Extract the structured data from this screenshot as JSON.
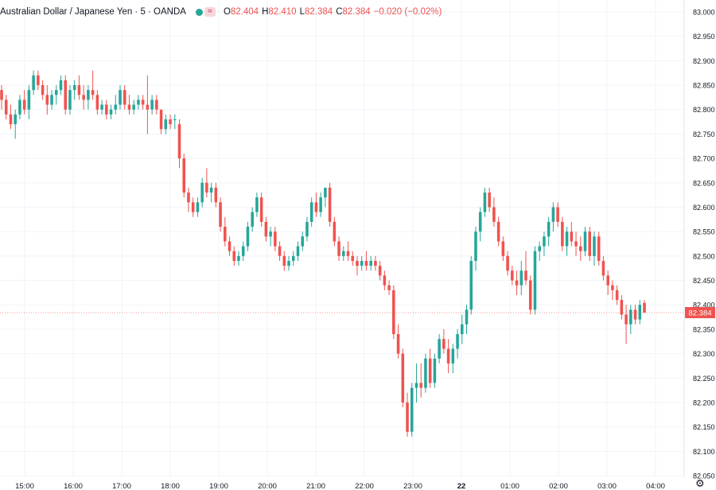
{
  "header": {
    "title": "Australian Dollar / Japanese Yen · 5 · OANDA",
    "open_label": "O",
    "open": "82.404",
    "high_label": "H",
    "high": "82.410",
    "low_label": "L",
    "low": "82.384",
    "close_label": "C",
    "close": "82.384",
    "change": "−0.020 (−0.02%)"
  },
  "colors": {
    "up": "#26a69a",
    "down": "#ef5350",
    "grid": "#f0f3fa",
    "price_line": "#ef5350"
  },
  "icons": {
    "settings": "gear-icon",
    "indicator": "wave-icon"
  },
  "chart_data": {
    "type": "candlestick",
    "ylim": [
      82.05,
      83.0
    ],
    "y_ticks": [
      "83.000",
      "82.950",
      "82.900",
      "82.850",
      "82.800",
      "82.750",
      "82.700",
      "82.650",
      "82.600",
      "82.550",
      "82.500",
      "82.450",
      "82.400",
      "82.350",
      "82.300",
      "82.250",
      "82.200",
      "82.150",
      "82.100",
      "82.050"
    ],
    "x_ticks": [
      "15:00",
      "16:00",
      "17:00",
      "18:00",
      "19:00",
      "20:00",
      "21:00",
      "22:00",
      "23:00",
      "22",
      "01:00",
      "02:00",
      "03:00",
      "04:00"
    ],
    "last_price": "82.384",
    "candles": [
      [
        82.84,
        82.85,
        82.8,
        82.82
      ],
      [
        82.82,
        82.83,
        82.78,
        82.79
      ],
      [
        82.79,
        82.81,
        82.76,
        82.77
      ],
      [
        82.77,
        82.8,
        82.74,
        82.79
      ],
      [
        82.79,
        82.83,
        82.78,
        82.82
      ],
      [
        82.82,
        82.84,
        82.79,
        82.8
      ],
      [
        82.8,
        82.85,
        82.78,
        82.84
      ],
      [
        82.84,
        82.88,
        82.83,
        82.87
      ],
      [
        82.87,
        82.88,
        82.84,
        82.85
      ],
      [
        82.85,
        82.86,
        82.82,
        82.83
      ],
      [
        82.83,
        82.85,
        82.79,
        82.81
      ],
      [
        82.81,
        82.84,
        82.8,
        82.83
      ],
      [
        82.83,
        82.85,
        82.81,
        82.84
      ],
      [
        82.84,
        82.87,
        82.83,
        82.86
      ],
      [
        82.86,
        82.87,
        82.79,
        82.8
      ],
      [
        82.8,
        82.85,
        82.79,
        82.84
      ],
      [
        82.84,
        82.86,
        82.82,
        82.85
      ],
      [
        82.85,
        82.87,
        82.82,
        82.83
      ],
      [
        82.83,
        82.85,
        82.8,
        82.82
      ],
      [
        82.82,
        82.85,
        82.8,
        82.84
      ],
      [
        82.84,
        82.88,
        82.82,
        82.83
      ],
      [
        82.83,
        82.84,
        82.79,
        82.8
      ],
      [
        82.8,
        82.82,
        82.79,
        82.81
      ],
      [
        82.81,
        82.82,
        82.78,
        82.79
      ],
      [
        82.79,
        82.81,
        82.78,
        82.8
      ],
      [
        82.8,
        82.83,
        82.79,
        82.81
      ],
      [
        82.81,
        82.85,
        82.8,
        82.84
      ],
      [
        82.84,
        82.85,
        82.8,
        82.81
      ],
      [
        82.81,
        82.83,
        82.79,
        82.8
      ],
      [
        82.8,
        82.82,
        82.79,
        82.81
      ],
      [
        82.81,
        82.83,
        82.8,
        82.82
      ],
      [
        82.82,
        82.83,
        82.8,
        82.81
      ],
      [
        82.81,
        82.87,
        82.75,
        82.8
      ],
      [
        82.8,
        82.83,
        82.79,
        82.82
      ],
      [
        82.82,
        82.83,
        82.79,
        82.8
      ],
      [
        82.8,
        82.8,
        82.75,
        82.76
      ],
      [
        82.76,
        82.79,
        82.75,
        82.78
      ],
      [
        82.78,
        82.79,
        82.76,
        82.77
      ],
      [
        82.78,
        82.79,
        82.76,
        82.78
      ],
      [
        82.77,
        82.78,
        82.68,
        82.7
      ],
      [
        82.7,
        82.71,
        82.62,
        82.63
      ],
      [
        82.63,
        82.64,
        82.59,
        82.61
      ],
      [
        82.61,
        82.62,
        82.58,
        82.59
      ],
      [
        82.59,
        82.62,
        82.58,
        82.61
      ],
      [
        82.61,
        82.66,
        82.6,
        82.65
      ],
      [
        82.65,
        82.68,
        82.62,
        82.63
      ],
      [
        82.63,
        82.65,
        82.61,
        82.64
      ],
      [
        82.64,
        82.65,
        82.6,
        82.61
      ],
      [
        82.61,
        82.62,
        82.55,
        82.56
      ],
      [
        82.56,
        82.58,
        82.52,
        82.53
      ],
      [
        82.53,
        82.54,
        82.5,
        82.51
      ],
      [
        82.51,
        82.52,
        82.48,
        82.49
      ],
      [
        82.49,
        82.51,
        82.48,
        82.5
      ],
      [
        82.5,
        82.53,
        82.49,
        82.52
      ],
      [
        82.52,
        82.57,
        82.51,
        82.56
      ],
      [
        82.56,
        82.6,
        82.55,
        82.59
      ],
      [
        82.59,
        82.63,
        82.58,
        82.62
      ],
      [
        82.62,
        82.63,
        82.56,
        82.57
      ],
      [
        82.57,
        82.58,
        82.53,
        82.54
      ],
      [
        82.54,
        82.56,
        82.52,
        82.55
      ],
      [
        82.55,
        82.56,
        82.51,
        82.52
      ],
      [
        82.52,
        82.53,
        82.49,
        82.5
      ],
      [
        82.5,
        82.51,
        82.47,
        82.48
      ],
      [
        82.48,
        82.5,
        82.47,
        82.49
      ],
      [
        82.49,
        82.51,
        82.48,
        82.5
      ],
      [
        82.5,
        82.53,
        82.49,
        82.52
      ],
      [
        82.52,
        82.55,
        82.51,
        82.54
      ],
      [
        82.54,
        82.58,
        82.53,
        82.57
      ],
      [
        82.57,
        82.62,
        82.56,
        82.61
      ],
      [
        82.61,
        82.63,
        82.58,
        82.59
      ],
      [
        82.59,
        82.63,
        82.58,
        82.62
      ],
      [
        82.62,
        82.64,
        82.6,
        82.64
      ],
      [
        82.64,
        82.65,
        82.56,
        82.57
      ],
      [
        82.57,
        82.58,
        82.52,
        82.53
      ],
      [
        82.53,
        82.54,
        82.49,
        82.5
      ],
      [
        82.5,
        82.52,
        82.49,
        82.51
      ],
      [
        82.51,
        82.53,
        82.49,
        82.5
      ],
      [
        82.5,
        82.51,
        82.48,
        82.49
      ],
      [
        82.49,
        82.5,
        82.46,
        82.48
      ],
      [
        82.48,
        82.5,
        82.47,
        82.49
      ],
      [
        82.49,
        82.51,
        82.47,
        82.48
      ],
      [
        82.48,
        82.5,
        82.47,
        82.49
      ],
      [
        82.49,
        82.5,
        82.47,
        82.48
      ],
      [
        82.48,
        82.49,
        82.45,
        82.46
      ],
      [
        82.46,
        82.47,
        82.43,
        82.44
      ],
      [
        82.44,
        82.45,
        82.42,
        82.43
      ],
      [
        82.43,
        82.44,
        82.33,
        82.34
      ],
      [
        82.34,
        82.36,
        82.29,
        82.3
      ],
      [
        82.3,
        82.31,
        82.19,
        82.2
      ],
      [
        82.2,
        82.22,
        82.13,
        82.14
      ],
      [
        82.14,
        82.24,
        82.13,
        82.23
      ],
      [
        82.23,
        82.28,
        82.2,
        82.24
      ],
      [
        82.24,
        82.28,
        82.21,
        82.23
      ],
      [
        82.23,
        82.3,
        82.22,
        82.29
      ],
      [
        82.29,
        82.31,
        82.23,
        82.24
      ],
      [
        82.24,
        82.3,
        82.23,
        82.29
      ],
      [
        82.29,
        82.34,
        82.28,
        82.33
      ],
      [
        82.33,
        82.35,
        82.3,
        82.31
      ],
      [
        82.31,
        82.33,
        82.26,
        82.28
      ],
      [
        82.28,
        82.32,
        82.26,
        82.31
      ],
      [
        82.31,
        82.35,
        82.29,
        82.34
      ],
      [
        82.34,
        82.38,
        82.32,
        82.36
      ],
      [
        82.36,
        82.4,
        82.34,
        82.39
      ],
      [
        82.39,
        82.5,
        82.38,
        82.49
      ],
      [
        82.49,
        82.56,
        82.47,
        82.55
      ],
      [
        82.55,
        82.6,
        82.53,
        82.59
      ],
      [
        82.59,
        82.64,
        82.58,
        82.63
      ],
      [
        82.63,
        82.64,
        82.59,
        82.6
      ],
      [
        82.6,
        82.62,
        82.56,
        82.57
      ],
      [
        82.57,
        82.58,
        82.52,
        82.53
      ],
      [
        82.53,
        82.54,
        82.49,
        82.5
      ],
      [
        82.5,
        82.51,
        82.46,
        82.47
      ],
      [
        82.47,
        82.48,
        82.44,
        82.45
      ],
      [
        82.45,
        82.47,
        82.42,
        82.44
      ],
      [
        82.44,
        82.49,
        82.42,
        82.47
      ],
      [
        82.47,
        82.51,
        82.44,
        82.45
      ],
      [
        82.45,
        82.46,
        82.38,
        82.39
      ],
      [
        82.39,
        82.52,
        82.38,
        82.51
      ],
      [
        82.51,
        82.53,
        82.49,
        82.52
      ],
      [
        82.52,
        82.55,
        82.5,
        82.54
      ],
      [
        82.54,
        82.58,
        82.52,
        82.57
      ],
      [
        82.57,
        82.61,
        82.55,
        82.6
      ],
      [
        82.6,
        82.61,
        82.56,
        82.57
      ],
      [
        82.57,
        82.58,
        82.51,
        82.52
      ],
      [
        82.52,
        82.56,
        82.5,
        82.55
      ],
      [
        82.55,
        82.57,
        82.52,
        82.53
      ],
      [
        82.53,
        82.55,
        82.5,
        82.52
      ],
      [
        82.52,
        82.54,
        82.49,
        82.51
      ],
      [
        82.51,
        82.56,
        82.5,
        82.55
      ],
      [
        82.55,
        82.56,
        82.49,
        82.5
      ],
      [
        82.5,
        82.55,
        82.48,
        82.54
      ],
      [
        82.54,
        82.55,
        82.48,
        82.49
      ],
      [
        82.49,
        82.5,
        82.45,
        82.46
      ],
      [
        82.46,
        82.47,
        82.42,
        82.44
      ],
      [
        82.44,
        82.45,
        82.41,
        82.43
      ],
      [
        82.43,
        82.44,
        82.4,
        82.41
      ],
      [
        82.41,
        82.42,
        82.37,
        82.38
      ],
      [
        82.38,
        82.4,
        82.32,
        82.36
      ],
      [
        82.36,
        82.4,
        82.34,
        82.39
      ],
      [
        82.39,
        82.4,
        82.36,
        82.37
      ],
      [
        82.37,
        82.41,
        82.36,
        82.4
      ],
      [
        82.404,
        82.41,
        82.384,
        82.384
      ]
    ]
  }
}
